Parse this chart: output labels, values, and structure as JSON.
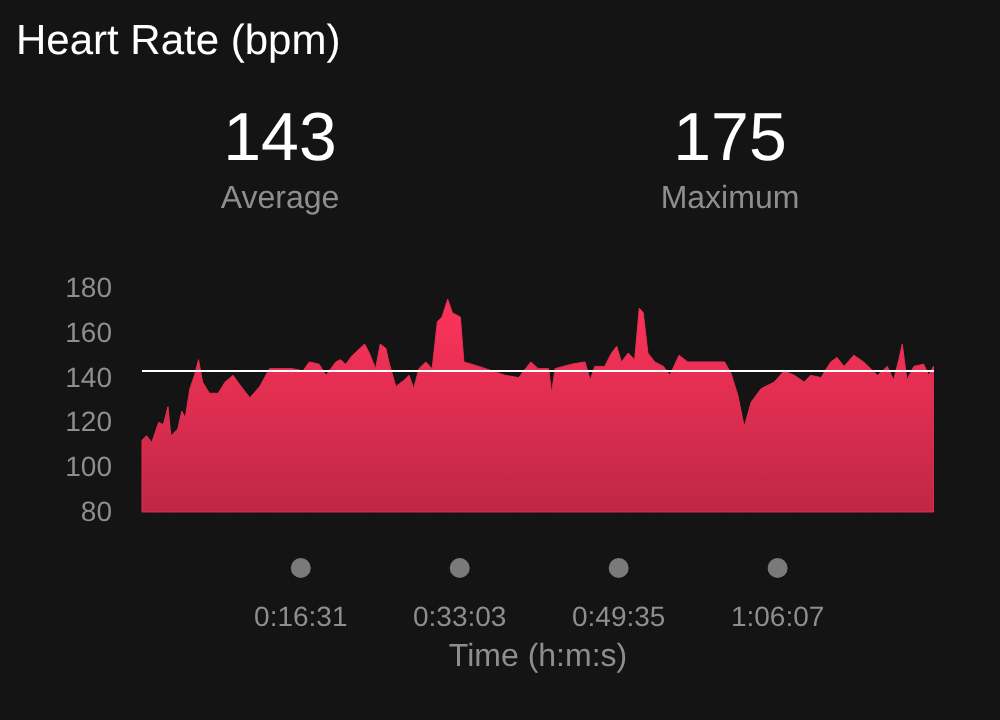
{
  "chart_data": {
    "type": "area",
    "title": "Heart Rate (bpm)",
    "xlabel": "Time (h:m:s)",
    "annotations": [
      "143",
      "Average",
      "175",
      "Maximum"
    ],
    "x": [
      0,
      0.008,
      0.017,
      0.029,
      0.037,
      0.045,
      0.05,
      0.062,
      0.069,
      0.075,
      0.083,
      0.091,
      0.098,
      0.105,
      0.117,
      0.132,
      0.144,
      0.158,
      0.169,
      0.187,
      0.204,
      0.221,
      0.261,
      0.279,
      0.29,
      0.307,
      0.319,
      0.336,
      0.344,
      0.353,
      0.365,
      0.386,
      0.394,
      0.405,
      0.413,
      0.423,
      0.428,
      0.44,
      0.455,
      0.463,
      0.471,
      0.48,
      0.492,
      0.503,
      0.512,
      0.52,
      0.53,
      0.538,
      0.552,
      0.558,
      0.584,
      0.607,
      0.63,
      0.653,
      0.674,
      0.687,
      0.705,
      0.71,
      0.716,
      0.745,
      0.768,
      0.777,
      0.785,
      0.802,
      0.814,
      0.823,
      0.831,
      0.843,
      0.854,
      0.862,
      0.869,
      0.877,
      0.889,
      0.904,
      0.915,
      0.931,
      0.946,
      0.964,
      0.987,
      1.01,
      1.021,
      1.033,
      1.044,
      1.056,
      1.073,
      1.096,
      1.113,
      1.131,
      1.148,
      1.159,
      1.177,
      1.194,
      1.205,
      1.217,
      1.234,
      1.251,
      1.275,
      1.292,
      1.303,
      1.312,
      1.318,
      1.326,
      1.338,
      1.355,
      1.364,
      1.372
    ],
    "series": [
      {
        "color": "#e42f52",
        "values": [
          112,
          114,
          111,
          120,
          119,
          127,
          114,
          117,
          125,
          122,
          135,
          141,
          148,
          138,
          133,
          133,
          138,
          141,
          137,
          131,
          136,
          144,
          144,
          143,
          147,
          146,
          141,
          147,
          148,
          146,
          150,
          155,
          151,
          144,
          155,
          153,
          147,
          136,
          139,
          141,
          135,
          144,
          147,
          144,
          165,
          167,
          175,
          169,
          167,
          147,
          145,
          143,
          141,
          140,
          147,
          144,
          144,
          133,
          144,
          146,
          147,
          139,
          145,
          145,
          151,
          154,
          147,
          151,
          148,
          171,
          169,
          151,
          147,
          145,
          141,
          150,
          147,
          147,
          147,
          147,
          142,
          132,
          118,
          129,
          135,
          138,
          143,
          141,
          138,
          141,
          140,
          147,
          149,
          145,
          150,
          147,
          141,
          145,
          139,
          148,
          155,
          139,
          145,
          146,
          141,
          145
        ]
      }
    ],
    "xlim": [
      0,
      1.373
    ],
    "xticks": [
      {
        "value": 0.27528,
        "label": "0:16:31"
      },
      {
        "value": 0.55083,
        "label": "0:33:03"
      },
      {
        "value": 0.82639,
        "label": "0:49:35"
      },
      {
        "value": 1.10194,
        "label": "1:06:07"
      }
    ],
    "ylim": [
      80,
      180
    ],
    "yticks": [
      80,
      100,
      120,
      140,
      160,
      180
    ],
    "ref_lines": [
      {
        "axis": "y",
        "value": 143,
        "color": "#ffffff"
      }
    ],
    "grid": false
  }
}
